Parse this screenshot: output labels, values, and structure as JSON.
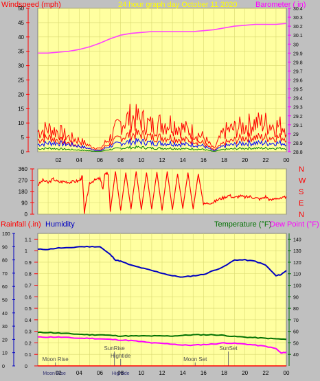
{
  "colors": {
    "background": "#c0c0c0",
    "plot_bg": "#ffffa0",
    "grid": "#d8d870",
    "windspeed": "#ff0000",
    "gust": "#ff0000",
    "avg_wind": "#0000ff",
    "wind_low": "#008000",
    "barometer": "#ff40ff",
    "humidity": "#0000c0",
    "temperature": "#007000",
    "dewpoint": "#ff00ff",
    "rainfall": "#ff0000",
    "marker": "#707070"
  },
  "chart_data": [
    {
      "type": "line",
      "name": "wind-barometer",
      "title": "24 hour graph day   October 11 2020",
      "left_label": "Windspeed (mph)",
      "right_label": "Barometer ( in)",
      "left_ticks": [
        "0",
        "5",
        "10",
        "15",
        "20",
        "25",
        "30",
        "35",
        "40",
        "45",
        "50"
      ],
      "left_range": [
        0,
        50
      ],
      "right_ticks": [
        "28.8",
        "28.9",
        "29",
        "29.1",
        "29.2",
        "29.3",
        "29.4",
        "29.5",
        "29.6",
        "29.7",
        "29.8",
        "29.9",
        "30",
        "30.1",
        "30.2",
        "30.3",
        "30.4"
      ],
      "right_range": [
        28.8,
        30.4
      ],
      "x_range": [
        0,
        24
      ],
      "x_ticks": [
        "02",
        "04",
        "06",
        "08",
        "10",
        "12",
        "14",
        "16",
        "18",
        "20",
        "22",
        "00"
      ],
      "series": [
        {
          "key": "barometer",
          "axis": "right",
          "x": [
            0,
            1,
            2,
            3,
            4,
            5,
            6,
            7,
            8,
            9,
            10,
            11,
            12,
            13,
            14,
            15,
            16,
            17,
            18,
            19,
            20,
            21,
            22,
            23,
            24
          ],
          "values": [
            29.9,
            29.9,
            29.91,
            29.92,
            29.94,
            29.97,
            30.01,
            30.06,
            30.1,
            30.12,
            30.13,
            30.14,
            30.14,
            30.14,
            30.14,
            30.14,
            30.15,
            30.16,
            30.18,
            30.2,
            30.21,
            30.22,
            30.22,
            30.22,
            30.23
          ]
        },
        {
          "key": "gust",
          "axis": "left",
          "x": [
            0,
            1,
            2,
            3,
            4,
            5,
            6,
            7,
            8,
            9,
            10,
            11,
            12,
            13,
            14,
            15,
            16,
            17,
            18,
            19,
            20,
            21,
            22,
            23,
            24
          ],
          "values": [
            7,
            8,
            7,
            5,
            4,
            2,
            1,
            5,
            10,
            12,
            11,
            9,
            10,
            10,
            8,
            7,
            5,
            1,
            7,
            8,
            9,
            10,
            10,
            9,
            9
          ]
        },
        {
          "key": "windspeed",
          "axis": "left",
          "x": [
            0,
            1,
            2,
            3,
            4,
            5,
            6,
            7,
            8,
            9,
            10,
            11,
            12,
            13,
            14,
            15,
            16,
            17,
            18,
            19,
            20,
            21,
            22,
            23,
            24
          ],
          "values": [
            4,
            5,
            4,
            3,
            2,
            1,
            0.5,
            3,
            5,
            6,
            6,
            5,
            5,
            5,
            4,
            4,
            3,
            0.5,
            3,
            4,
            5,
            5,
            5,
            5,
            5
          ]
        },
        {
          "key": "avg_wind",
          "axis": "left",
          "x": [
            0,
            1,
            2,
            3,
            4,
            5,
            6,
            7,
            8,
            9,
            10,
            11,
            12,
            13,
            14,
            15,
            16,
            17,
            18,
            19,
            20,
            21,
            22,
            23,
            24
          ],
          "values": [
            2.5,
            3,
            3,
            2.5,
            2,
            1,
            0.3,
            2,
            3,
            3.5,
            3.5,
            3,
            3,
            3,
            2.5,
            2.5,
            2,
            0.3,
            2,
            2.5,
            3,
            3,
            3,
            3,
            3
          ]
        },
        {
          "key": "wind_low",
          "axis": "left",
          "x": [
            0,
            1,
            2,
            3,
            4,
            5,
            6,
            7,
            8,
            9,
            10,
            11,
            12,
            13,
            14,
            15,
            16,
            17,
            18,
            19,
            20,
            21,
            22,
            23,
            24
          ],
          "values": [
            1,
            1.2,
            1,
            0.8,
            0.6,
            0.3,
            0.1,
            0.8,
            1.2,
            1.5,
            1.5,
            1.2,
            1.2,
            1.2,
            1,
            1,
            0.8,
            0.1,
            0.8,
            1,
            1.2,
            1.2,
            1.2,
            1.2,
            1.2
          ]
        }
      ]
    },
    {
      "type": "line",
      "name": "wind-direction",
      "left_ticks": [
        "0",
        "90",
        "180",
        "270",
        "360"
      ],
      "left_range": [
        0,
        360
      ],
      "right_ticks": [
        "N",
        "W",
        "S",
        "E",
        "N"
      ],
      "x_range": [
        0,
        24
      ],
      "series": [
        {
          "key": "direction",
          "axis": "left",
          "x": [
            0,
            0.5,
            1,
            1.5,
            2,
            2.5,
            3,
            3.5,
            4,
            4.3,
            4.5,
            5,
            5.5,
            6,
            6.3,
            6.5,
            6.8,
            7,
            7.5,
            8,
            8.5,
            9,
            9.5,
            10,
            10.5,
            11,
            11.5,
            12,
            12.5,
            13,
            13.5,
            14,
            14.5,
            15,
            15.5,
            16,
            16.5,
            17,
            17.5,
            18,
            18.5,
            19,
            19.5,
            20,
            20.5,
            21,
            21.5,
            22,
            22.5,
            23,
            23.5,
            24
          ],
          "values": [
            230,
            270,
            250,
            280,
            255,
            260,
            255,
            260,
            265,
            300,
            10,
            250,
            270,
            285,
            200,
            330,
            320,
            20,
            340,
            30,
            330,
            40,
            340,
            35,
            330,
            40,
            335,
            30,
            340,
            35,
            320,
            45,
            330,
            40,
            320,
            80,
            90,
            95,
            120,
            135,
            150,
            130,
            145,
            135,
            140,
            130,
            120,
            140,
            110,
            130,
            120,
            140
          ]
        }
      ]
    },
    {
      "type": "line",
      "name": "rain-humidity-temperature",
      "top_labels": [
        "Rainfall (.in)",
        "Humidity",
        "Temperature (°F)",
        "Dew Point (°F)"
      ],
      "humidity_ticks": [
        "0",
        "10",
        "20",
        "30",
        "40",
        "50",
        "60",
        "70",
        "80",
        "90",
        "100"
      ],
      "humidity_range": [
        0,
        100
      ],
      "rain_ticks": [
        "0",
        "0.1",
        "0.2",
        "0.3",
        "0.4",
        "0.5",
        "0.6",
        "0.7",
        "0.8",
        "0.9",
        "1",
        "1.1"
      ],
      "rain_range": [
        0,
        1.15
      ],
      "temp_ticks": [
        "40",
        "50",
        "60",
        "70",
        "80",
        "90",
        "100",
        "110",
        "120",
        "130",
        "140"
      ],
      "temp_range": [
        30,
        145
      ],
      "x_range": [
        0,
        24
      ],
      "x_ticks": [
        "02",
        "04",
        "06",
        "08",
        "10",
        "12",
        "14",
        "16",
        "18",
        "20",
        "22",
        "00"
      ],
      "series": [
        {
          "key": "humidity",
          "axis": "humidity",
          "x": [
            0,
            1,
            2,
            3,
            4,
            5,
            6,
            7,
            7.5,
            8,
            9,
            10,
            11,
            12,
            13,
            14,
            15,
            16,
            17,
            18,
            19,
            20,
            21,
            22,
            23,
            23.5,
            24
          ],
          "values": [
            88,
            88,
            89,
            89,
            90,
            90,
            90,
            84,
            80,
            79,
            76,
            74,
            72,
            70,
            68,
            67,
            68,
            69,
            72,
            75,
            80,
            80,
            79,
            76,
            68,
            69,
            72
          ]
        },
        {
          "key": "temperature",
          "axis": "temp",
          "x": [
            0,
            1,
            2,
            3,
            4,
            5,
            6,
            7,
            8,
            9,
            10,
            11,
            12,
            13,
            14,
            15,
            16,
            17,
            18,
            19,
            20,
            21,
            22,
            23,
            24
          ],
          "values": [
            59,
            59,
            58.5,
            58,
            57.5,
            57,
            57,
            56.5,
            56,
            56,
            56,
            56,
            56,
            56,
            56.5,
            57,
            57,
            57,
            56.5,
            55.5,
            55,
            54.5,
            54,
            53.5,
            53
          ]
        },
        {
          "key": "dewpoint",
          "axis": "temp",
          "x": [
            0,
            1,
            2,
            3,
            4,
            5,
            6,
            7,
            8,
            9,
            10,
            11,
            12,
            13,
            14,
            15,
            16,
            17,
            18,
            19,
            20,
            21,
            22,
            23,
            23.5,
            24
          ],
          "values": [
            55,
            55,
            55,
            54.5,
            54,
            54,
            53.5,
            53,
            52.5,
            52,
            51,
            50,
            49.5,
            49,
            48,
            48,
            48.5,
            49,
            50,
            49.5,
            49,
            48,
            47,
            45,
            41,
            42
          ]
        },
        {
          "key": "rainfall",
          "axis": "rain",
          "x": [
            0,
            24
          ],
          "values": [
            0,
            0
          ]
        }
      ],
      "events": [
        {
          "label": "Moon Rise",
          "x": 1.7,
          "tier": "low"
        },
        {
          "label": "SunRise",
          "x": 7.4,
          "tier": "high"
        },
        {
          "label": "Hightide",
          "x": 8.0,
          "tier": "mid"
        },
        {
          "label": "Moon Set",
          "x": 15.2,
          "tier": "low"
        },
        {
          "label": "SunSet",
          "x": 18.4,
          "tier": "high"
        }
      ],
      "bottom_labels": [
        {
          "label": "Moon Rise",
          "x": 1.6
        },
        {
          "label": "Hightide",
          "x": 8.0
        }
      ]
    }
  ]
}
